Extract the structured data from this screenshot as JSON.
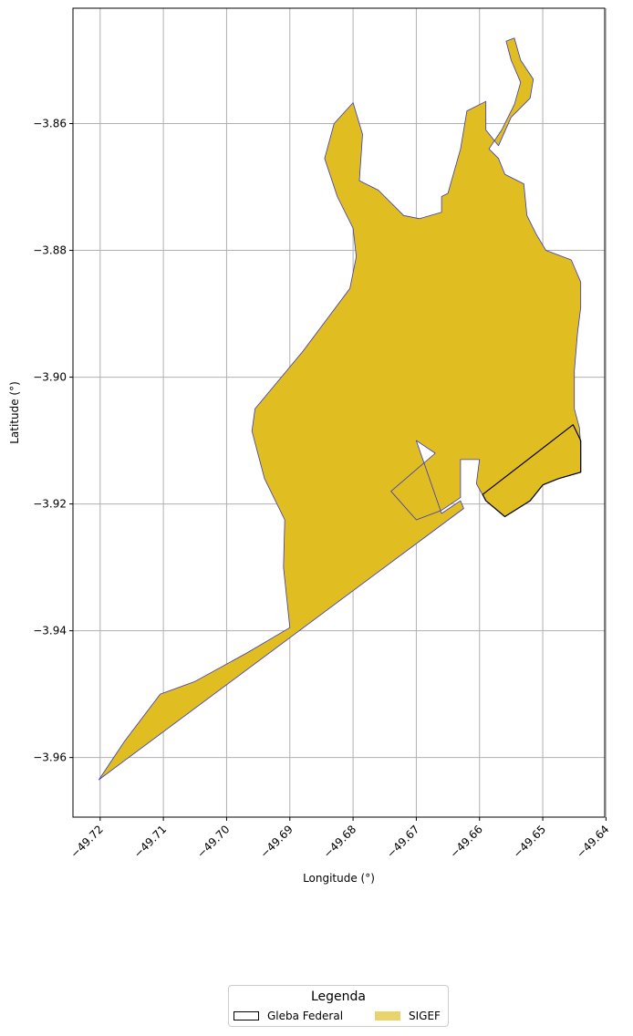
{
  "chart_data": {
    "type": "map",
    "xlabel": "Longitude (°)",
    "ylabel": "Latitude (°)",
    "xlim": [
      -49.7243,
      -49.6402
    ],
    "ylim": [
      -3.9694,
      -3.8418
    ],
    "xticks": [
      -49.72,
      -49.71,
      -49.7,
      -49.69,
      -49.68,
      -49.67,
      -49.66,
      -49.65,
      -49.64
    ],
    "xtick_labels": [
      "−49.72",
      "−49.71",
      "−49.70",
      "−49.69",
      "−49.68",
      "−49.67",
      "−49.66",
      "−49.65",
      "−49.64"
    ],
    "yticks": [
      -3.86,
      -3.88,
      -3.9,
      -3.92,
      -3.94,
      -3.96
    ],
    "ytick_labels": [
      "−3.86",
      "−3.88",
      "−3.90",
      "−3.92",
      "−3.94",
      "−3.96"
    ],
    "grid": true,
    "layers": [
      {
        "name": "SIGEF",
        "fill": "#e0bd20",
        "stroke": "#3a3ab8",
        "polygon_lonlat": [
          [
            -49.7202,
            -3.9635
          ],
          [
            -49.7162,
            -3.9575
          ],
          [
            -49.7105,
            -3.95
          ],
          [
            -49.705,
            -3.948
          ],
          [
            -49.6968,
            -3.9435
          ],
          [
            -49.69,
            -3.9395
          ],
          [
            -49.691,
            -3.93
          ],
          [
            -49.6908,
            -3.9225
          ],
          [
            -49.694,
            -3.916
          ],
          [
            -49.696,
            -3.9085
          ],
          [
            -49.6955,
            -3.905
          ],
          [
            -49.688,
            -3.896
          ],
          [
            -49.6805,
            -3.886
          ],
          [
            -49.6795,
            -3.881
          ],
          [
            -49.68,
            -3.8765
          ],
          [
            -49.6825,
            -3.8715
          ],
          [
            -49.6845,
            -3.8655
          ],
          [
            -49.683,
            -3.86
          ],
          [
            -49.68,
            -3.8567
          ],
          [
            -49.6785,
            -3.8617
          ],
          [
            -49.679,
            -3.869
          ],
          [
            -49.676,
            -3.8705
          ],
          [
            -49.672,
            -3.8745
          ],
          [
            -49.6695,
            -3.875
          ],
          [
            -49.666,
            -3.874
          ],
          [
            -49.666,
            -3.8715
          ],
          [
            -49.665,
            -3.871
          ],
          [
            -49.663,
            -3.864
          ],
          [
            -49.662,
            -3.858
          ],
          [
            -49.659,
            -3.8565
          ],
          [
            -49.659,
            -3.861
          ],
          [
            -49.657,
            -3.8635
          ],
          [
            -49.655,
            -3.859
          ],
          [
            -49.652,
            -3.856
          ],
          [
            -49.6515,
            -3.853
          ],
          [
            -49.6535,
            -3.85
          ],
          [
            -49.6545,
            -3.8465
          ],
          [
            -49.6558,
            -3.847
          ],
          [
            -49.655,
            -3.85
          ],
          [
            -49.6535,
            -3.8535
          ],
          [
            -49.6545,
            -3.857
          ],
          [
            -49.6565,
            -3.861
          ],
          [
            -49.6585,
            -3.864
          ],
          [
            -49.657,
            -3.8655
          ],
          [
            -49.656,
            -3.868
          ],
          [
            -49.653,
            -3.8695
          ],
          [
            -49.6525,
            -3.8745
          ],
          [
            -49.651,
            -3.8775
          ],
          [
            -49.6495,
            -3.88
          ],
          [
            -49.6455,
            -3.8815
          ],
          [
            -49.644,
            -3.885
          ],
          [
            -49.644,
            -3.889
          ],
          [
            -49.6445,
            -3.893
          ],
          [
            -49.645,
            -3.899
          ],
          [
            -49.645,
            -3.905
          ],
          [
            -49.6442,
            -3.908
          ],
          [
            -49.644,
            -3.911
          ],
          [
            -49.644,
            -3.915
          ],
          [
            -49.6475,
            -3.916
          ],
          [
            -49.65,
            -3.917
          ],
          [
            -49.652,
            -3.9195
          ],
          [
            -49.656,
            -3.922
          ],
          [
            -49.659,
            -3.9195
          ],
          [
            -49.6605,
            -3.9168
          ],
          [
            -49.66,
            -3.913
          ],
          [
            -49.663,
            -3.913
          ],
          [
            -49.663,
            -3.919
          ],
          [
            -49.666,
            -3.921
          ],
          [
            -49.67,
            -3.9225
          ],
          [
            -49.674,
            -3.918
          ],
          [
            -49.667,
            -3.912
          ],
          [
            -49.67,
            -3.91
          ],
          [
            -49.666,
            -3.9215
          ],
          [
            -49.663,
            -3.9195
          ],
          [
            -49.6625,
            -3.9207
          ],
          [
            -49.7202,
            -3.9635
          ]
        ]
      },
      {
        "name": "Gleba Federal",
        "fill": "none",
        "stroke": "#000000",
        "polygon_lonlat": [
          [
            -49.6595,
            -3.9185
          ],
          [
            -49.6452,
            -3.9075
          ],
          [
            -49.644,
            -3.91
          ],
          [
            -49.644,
            -3.915
          ],
          [
            -49.6475,
            -3.916
          ],
          [
            -49.65,
            -3.917
          ],
          [
            -49.652,
            -3.9195
          ],
          [
            -49.656,
            -3.922
          ],
          [
            -49.659,
            -3.9195
          ],
          [
            -49.6595,
            -3.9185
          ]
        ]
      }
    ],
    "legend": {
      "title": "Legenda",
      "placement": "bottom-center",
      "entries": [
        "Gleba Federal",
        "SIGEF"
      ]
    }
  }
}
